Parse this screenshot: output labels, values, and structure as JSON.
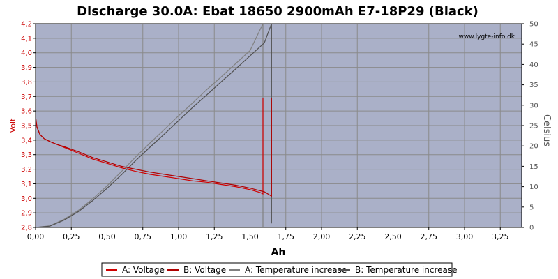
{
  "chart_data": {
    "type": "line",
    "title": "Discharge 30.0A: Ebat 18650 2900mAh E7-18P29 (Black)",
    "watermark": "www.lygte-info.dk",
    "xlabel": "Ah",
    "ylabel_left": "Volt",
    "ylabel_right": "Celsius",
    "xlim": [
      0,
      3.4
    ],
    "ylim_left": [
      2.8,
      4.2
    ],
    "ylim_right": [
      0,
      50
    ],
    "x_ticks": [
      "0,00",
      "0,25",
      "0,50",
      "0,75",
      "1,00",
      "1,25",
      "1,50",
      "1,75",
      "2,00",
      "2,25",
      "2,50",
      "2,75",
      "3,00",
      "3,25"
    ],
    "y_left_ticks": [
      "2,8",
      "2,9",
      "3,0",
      "3,1",
      "3,2",
      "3,3",
      "3,4",
      "3,5",
      "3,6",
      "3,7",
      "3,8",
      "3,9",
      "4,0",
      "4,1",
      "4,2"
    ],
    "y_right_ticks": [
      "0",
      "5",
      "10",
      "15",
      "20",
      "25",
      "30",
      "35",
      "40",
      "45",
      "50"
    ],
    "grid": true,
    "legend_position": "bottom",
    "colors": {
      "plot_bg": "#aab0c8",
      "grid": "#8a8a8a",
      "voltage_a": "#d00000",
      "voltage_b": "#b00000",
      "temp_a": "#808080",
      "temp_b": "#505050",
      "left_axis": "#cc0000"
    },
    "series": [
      {
        "name": "A: Voltage",
        "axis": "left",
        "x": [
          0,
          0.01,
          0.03,
          0.06,
          0.1,
          0.15,
          0.2,
          0.3,
          0.4,
          0.5,
          0.6,
          0.7,
          0.8,
          0.9,
          1.0,
          1.1,
          1.2,
          1.3,
          1.4,
          1.5,
          1.57,
          1.59,
          1.59
        ],
        "y": [
          3.56,
          3.49,
          3.44,
          3.41,
          3.39,
          3.37,
          3.35,
          3.31,
          3.27,
          3.24,
          3.21,
          3.185,
          3.165,
          3.15,
          3.135,
          3.12,
          3.11,
          3.095,
          3.08,
          3.06,
          3.04,
          3.03,
          3.69
        ]
      },
      {
        "name": "B: Voltage",
        "axis": "left",
        "x": [
          0,
          0.01,
          0.03,
          0.06,
          0.1,
          0.15,
          0.2,
          0.3,
          0.4,
          0.5,
          0.6,
          0.7,
          0.8,
          0.9,
          1.0,
          1.1,
          1.2,
          1.3,
          1.4,
          1.5,
          1.6,
          1.65,
          1.65
        ],
        "y": [
          3.56,
          3.49,
          3.44,
          3.41,
          3.39,
          3.37,
          3.355,
          3.32,
          3.28,
          3.25,
          3.22,
          3.2,
          3.18,
          3.165,
          3.15,
          3.135,
          3.12,
          3.105,
          3.09,
          3.07,
          3.045,
          3.015,
          3.69
        ]
      },
      {
        "name": "A: Temperature increase",
        "axis": "right",
        "x": [
          0,
          0.1,
          0.2,
          0.3,
          0.4,
          0.5,
          0.6,
          0.7,
          0.8,
          0.9,
          1.0,
          1.1,
          1.2,
          1.3,
          1.4,
          1.5,
          1.59,
          1.59
        ],
        "y": [
          0,
          0.4,
          2.0,
          4.2,
          7.0,
          10.2,
          13.7,
          17.3,
          20.7,
          24.0,
          27.4,
          30.6,
          33.9,
          37.0,
          40.2,
          43.4,
          50.0,
          0
        ]
      },
      {
        "name": "B: Temperature increase",
        "axis": "right",
        "x": [
          0,
          0.1,
          0.2,
          0.3,
          0.4,
          0.5,
          0.6,
          0.7,
          0.8,
          0.9,
          1.0,
          1.1,
          1.2,
          1.3,
          1.4,
          1.5,
          1.6,
          1.65,
          1.65
        ],
        "y": [
          0,
          0.3,
          1.8,
          3.9,
          6.6,
          9.6,
          12.9,
          16.4,
          19.7,
          22.9,
          26.2,
          29.5,
          32.6,
          35.8,
          38.9,
          42.1,
          45.3,
          50.0,
          1.0
        ]
      }
    ]
  }
}
